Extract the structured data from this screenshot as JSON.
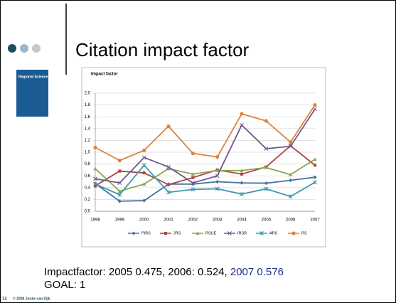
{
  "slide": {
    "title": "Citation impact factor",
    "cover_label": "Regional Science",
    "caption_1": "Impactfactor: 2005 0.475, 2006: 0.524, ",
    "caption_highlight": "2007 0.576",
    "caption_2": "GOAL: 1",
    "page_number": "12",
    "footer": "© 2008 Jouke van Dijk"
  },
  "chart_data": {
    "type": "line",
    "title": "Impact factor",
    "categories": [
      "1998",
      "1999",
      "2000",
      "2001",
      "2002",
      "2003",
      "2004",
      "2005",
      "2006",
      "2007"
    ],
    "ylim": [
      0,
      2
    ],
    "yticks": [
      {
        "value": 0,
        "label": "0,0"
      },
      {
        "value": 0.2,
        "label": "0,2"
      },
      {
        "value": 0.4,
        "label": "0,4"
      },
      {
        "value": 0.6,
        "label": "0,6"
      },
      {
        "value": 0.8,
        "label": "0,8"
      },
      {
        "value": 1,
        "label": "1,0"
      },
      {
        "value": 1.2,
        "label": "1,2"
      },
      {
        "value": 1.4,
        "label": "1,4"
      },
      {
        "value": 1.6,
        "label": "1,6"
      },
      {
        "value": 1.8,
        "label": "1,8"
      },
      {
        "value": 2,
        "label": "2,0"
      }
    ],
    "grid": true,
    "legend": "bottom",
    "series": [
      {
        "name": "PIRS",
        "color": "#4572a7",
        "marker": "diamond",
        "values": [
          0.47,
          0.17,
          0.18,
          0.46,
          0.46,
          0.5,
          0.48,
          0.475,
          0.524,
          0.576
        ]
      },
      {
        "name": "JRS",
        "color": "#aa4643",
        "marker": "square",
        "values": [
          0.43,
          0.68,
          0.65,
          0.45,
          0.57,
          0.7,
          0.63,
          0.75,
          1.11,
          0.78
        ]
      },
      {
        "name": "RSUE",
        "color": "#89a54e",
        "marker": "triangle",
        "values": [
          0.72,
          0.34,
          0.46,
          0.72,
          0.63,
          0.69,
          0.69,
          0.74,
          0.62,
          0.88
        ]
      },
      {
        "name": "IRSR",
        "color": "#71588f",
        "marker": "x",
        "values": [
          0.55,
          0.48,
          0.91,
          0.75,
          0.48,
          0.6,
          1.46,
          1.06,
          1.1,
          1.73
        ]
      },
      {
        "name": "ARS",
        "color": "#4198af",
        "marker": "star",
        "values": [
          0.46,
          0.28,
          0.78,
          0.32,
          0.37,
          0.38,
          0.29,
          0.38,
          0.25,
          0.49
        ]
      },
      {
        "name": "RS",
        "color": "#db843d",
        "marker": "circle",
        "values": [
          1.08,
          0.86,
          1.03,
          1.44,
          0.98,
          0.92,
          1.65,
          1.53,
          1.17,
          1.8
        ]
      }
    ]
  }
}
